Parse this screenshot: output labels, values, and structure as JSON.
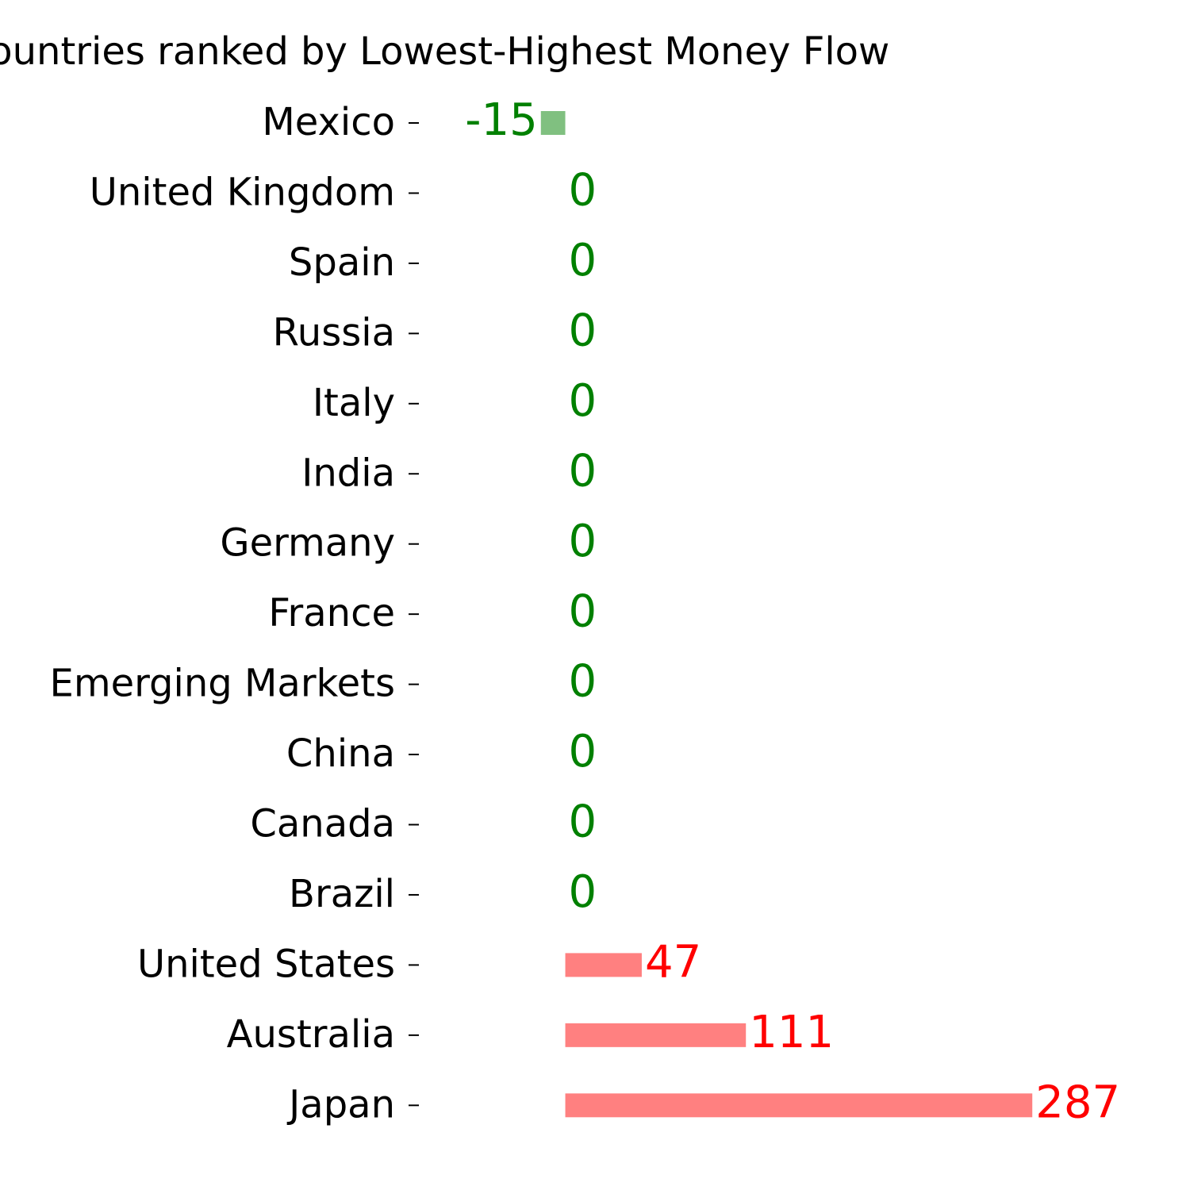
{
  "chart_data": {
    "type": "barh",
    "title": "Countries ranked by Lowest-Highest Money Flow",
    "categories": [
      "Mexico",
      "United Kingdom",
      "Spain",
      "Russia",
      "Italy",
      "India",
      "Germany",
      "France",
      "Emerging Markets",
      "China",
      "Canada",
      "Brazil",
      "United States",
      "Australia",
      "Japan"
    ],
    "values": [
      -15,
      0,
      0,
      0,
      0,
      0,
      0,
      0,
      0,
      0,
      0,
      0,
      47,
      111,
      287
    ],
    "xlim": [
      -30,
      302
    ],
    "positive_color": "#ff8080",
    "negative_color": "#80c080",
    "positive_label_color": "#ff0000",
    "negative_label_color": "#008000"
  }
}
